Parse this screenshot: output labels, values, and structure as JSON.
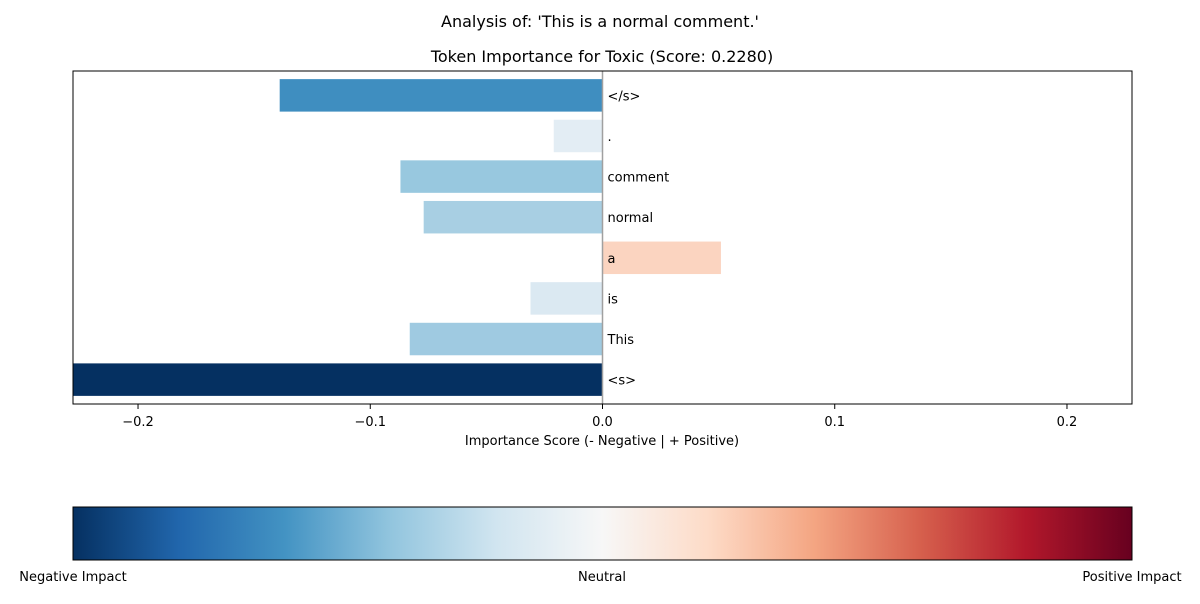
{
  "suptitle": "Analysis of: 'This is a normal comment.'",
  "chart_data": {
    "type": "bar",
    "orientation": "horizontal",
    "title": "Token Importance for Toxic (Score: 0.2280)",
    "xlabel": "Importance Score (- Negative | + Positive)",
    "ylabel": "",
    "xlim": [
      -0.228,
      0.228
    ],
    "x_ticks": [
      -0.2,
      -0.1,
      0.0,
      0.1,
      0.2
    ],
    "x_tick_labels": [
      "−0.2",
      "−0.1",
      "0.0",
      "0.1",
      "0.2"
    ],
    "grid": false,
    "categories": [
      "<s>",
      "This",
      "is",
      "a",
      "normal",
      "comment",
      ".",
      "</s>"
    ],
    "values": [
      -0.228,
      -0.083,
      -0.031,
      0.051,
      -0.077,
      -0.087,
      -0.021,
      -0.139
    ],
    "bar_colors": [
      "#053061",
      "#9fcae1",
      "#dbe9f2",
      "#fbd4c0",
      "#a8cfe3",
      "#98c8df",
      "#e3edf4",
      "#3f8ec0"
    ],
    "zero_line_color": "#a0a0a0"
  },
  "colorbar": {
    "labels": {
      "negative": "Negative Impact",
      "neutral": "Neutral",
      "positive": "Positive Impact"
    },
    "colormap": "RdBu_r",
    "stops": [
      "#053061",
      "#2166ac",
      "#4393c3",
      "#92c5de",
      "#d1e5f0",
      "#f7f7f7",
      "#fddbc7",
      "#f4a582",
      "#d6604d",
      "#b2182b",
      "#67001f"
    ]
  }
}
